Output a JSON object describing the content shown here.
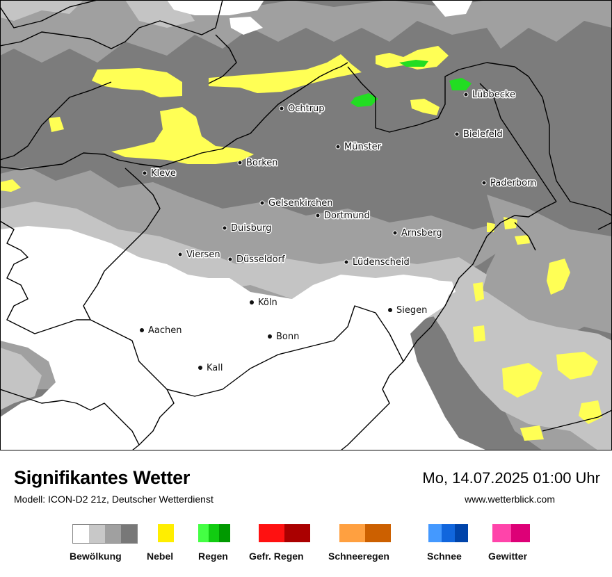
{
  "map": {
    "cities": [
      {
        "name": "Ochtrup"
      },
      {
        "name": "Lübbecke"
      },
      {
        "name": "Bielefeld"
      },
      {
        "name": "Münster"
      },
      {
        "name": "Borken"
      },
      {
        "name": "Kleve"
      },
      {
        "name": "Paderborn"
      },
      {
        "name": "Gelsenkirchen"
      },
      {
        "name": "Dortmund"
      },
      {
        "name": "Duisburg"
      },
      {
        "name": "Arnsberg"
      },
      {
        "name": "Viersen"
      },
      {
        "name": "Düsseldorf"
      },
      {
        "name": "Lüdenscheid"
      },
      {
        "name": "Köln"
      },
      {
        "name": "Siegen"
      },
      {
        "name": "Aachen"
      },
      {
        "name": "Bonn"
      },
      {
        "name": "Kall"
      }
    ]
  },
  "footer": {
    "title": "Signifikantes Wetter",
    "model": "Modell: ICON-D2 21z, Deutscher Wetterdienst",
    "datetime": "Mo, 14.07.2025 01:00 Uhr",
    "website": "www.wetterblick.com"
  },
  "legend": [
    {
      "label": "Bewölkung",
      "colors": [
        "#ffffff",
        "#c8c8c8",
        "#a0a0a0",
        "#787878"
      ]
    },
    {
      "label": "Nebel",
      "colors": [
        "#ffee00"
      ]
    },
    {
      "label": "Regen",
      "colors": [
        "#44ff44",
        "#11cc11",
        "#009900"
      ]
    },
    {
      "label": "Gefr. Regen",
      "colors": [
        "#ff1111",
        "#aa0000"
      ]
    },
    {
      "label": "Schneeregen",
      "colors": [
        "#ffa040",
        "#cc6000"
      ]
    },
    {
      "label": "Schnee",
      "colors": [
        "#4499ff",
        "#1166dd",
        "#0044aa"
      ]
    },
    {
      "label": "Gewitter",
      "colors": [
        "#ff44aa",
        "#dd0077"
      ]
    }
  ],
  "colors": {
    "cloud_light": "#c8c8c8",
    "cloud_medium": "#a0a0a0",
    "cloud_dark": "#787878",
    "fog": "#ffff55",
    "rain": "#22dd22",
    "border": "#000000"
  }
}
